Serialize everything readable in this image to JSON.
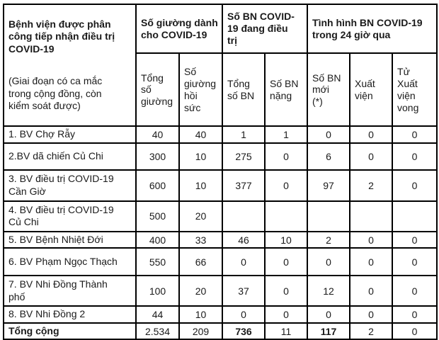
{
  "page": {
    "background": "#ffffff",
    "border_color": "#000000",
    "text_color": "#1a1a1a"
  },
  "table": {
    "main_header": {
      "title": "Bệnh viện được phân\ncông tiếp nhận điều trị\nCOVID-19",
      "subtitle": "(Giai đoạn có ca mắc\ntrong cộng đồng, còn\nkiểm soát được)"
    },
    "column_groups": [
      {
        "label": "Số giường dành\ncho COVID-19",
        "span": 2
      },
      {
        "label": "Số BN COVID-\n19 đang điều\ntrị",
        "span": 2
      },
      {
        "label": "Tình hình BN COVID-19\ntrong 24 giờ qua",
        "span": 3
      }
    ],
    "sub_headers": [
      {
        "label": "Tổng\nsố\ngiường"
      },
      {
        "label": "Số\ngiường\nhồi\nsức"
      },
      {
        "label": "Tổng\nsố BN"
      },
      {
        "label": "Số BN\nnặng"
      },
      {
        "label": "Số BN\nmới\n(*)"
      },
      {
        "label": "Xuất\nviện"
      },
      {
        "label": "Tử\nXuất\nviện\nvong"
      }
    ],
    "rows": [
      {
        "name": "1. BV Chợ Rẫy",
        "values": [
          "40",
          "40",
          "1",
          "1",
          "0",
          "0",
          "0"
        ]
      },
      {
        "name": "2.BV dã chiến Củ Chi",
        "values": [
          "300",
          "10",
          "275",
          "0",
          "6",
          "0",
          "0"
        ]
      },
      {
        "name": "3. BV điều trị COVID-19\nCần Giờ",
        "values": [
          "600",
          "10",
          "377",
          "0",
          "97",
          "2",
          "0"
        ]
      },
      {
        "name": "4. BV điều trị COVID-19\nCủ Chi",
        "values": [
          "500",
          "20",
          "",
          "",
          "",
          "",
          ""
        ]
      },
      {
        "name": "5. BV Bệnh Nhiệt Đới",
        "values": [
          "400",
          "33",
          "46",
          "10",
          "2",
          "0",
          "0"
        ]
      },
      {
        "name": "6. BV Phạm Ngọc Thạch",
        "values": [
          "550",
          "66",
          "0",
          "0",
          "0",
          "0",
          "0"
        ]
      },
      {
        "name": "7. BV Nhi Đồng Thành\nphố",
        "values": [
          "100",
          "20",
          "37",
          "0",
          "12",
          "0",
          "0"
        ]
      },
      {
        "name": "8. BV Nhi Đồng 2",
        "values": [
          "44",
          "10",
          "0",
          "0",
          "0",
          "0",
          "0"
        ]
      }
    ],
    "total_row": {
      "label": "Tổng cộng",
      "values": [
        "2.534",
        "209",
        "736",
        "11",
        "117",
        "2",
        "0"
      ],
      "bold_value_indices": [
        2,
        4
      ]
    }
  }
}
